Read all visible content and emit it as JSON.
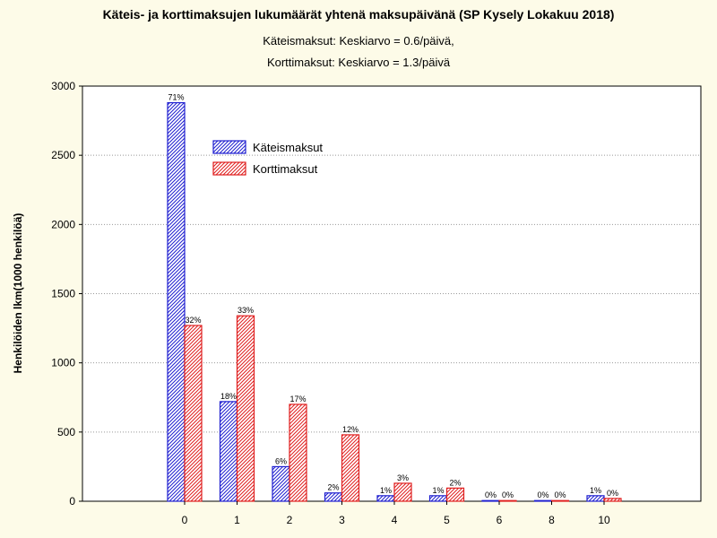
{
  "chart_data": {
    "type": "bar",
    "title": "Käteis- ja korttimaksujen lukumäärät yhtenä maksupäivänä (SP Kysely Lokakuu 2018)",
    "subtitle_1": "Käteismaksut: Keskiarvo = 0.6/päivä,",
    "subtitle_2": "Korttimaksut: Keskiarvo = 1.3/päivä",
    "ylabel": "Henkilöiden lkm(1000 henkilöä)",
    "xlabel": "",
    "ylim": [
      0,
      3000
    ],
    "yticks": [
      0,
      500,
      1000,
      1500,
      2000,
      2500,
      3000
    ],
    "categories": [
      "0",
      "1",
      "2",
      "3",
      "4",
      "5",
      "6",
      "8",
      "10"
    ],
    "series": [
      {
        "name": "Käteismaksut",
        "color": "#1f1fd0",
        "values": [
          2880,
          720,
          250,
          60,
          40,
          40,
          5,
          5,
          40
        ],
        "labels": [
          "71%",
          "18%",
          "6%",
          "2%",
          "1%",
          "1%",
          "0%",
          "0%",
          "1%"
        ]
      },
      {
        "name": "Korttimaksut",
        "color": "#e01f1f",
        "values": [
          1270,
          1340,
          700,
          480,
          130,
          95,
          5,
          5,
          20
        ],
        "labels": [
          "32%",
          "33%",
          "17%",
          "12%",
          "3%",
          "2%",
          "0%",
          "0%",
          "0%"
        ]
      }
    ],
    "grid": true,
    "legend_position": "top-left"
  }
}
